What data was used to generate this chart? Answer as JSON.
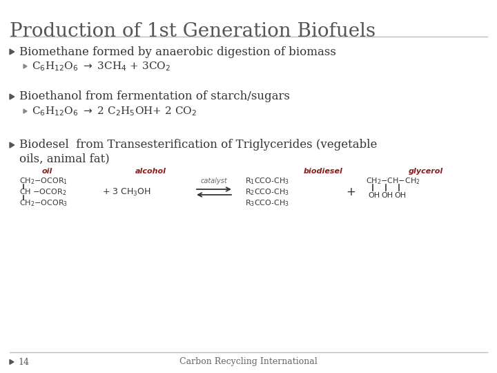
{
  "title": "Production of 1st Generation Biofuels",
  "bg_color": "#ffffff",
  "title_color": "#555555",
  "text_color": "#333333",
  "red_color": "#8B1A1A",
  "footer_text": "Carbon Recycling International",
  "page_num": "14",
  "line_color": "#bbbbbb",
  "bullet_dark": "#555555",
  "bullet_light": "#888888"
}
